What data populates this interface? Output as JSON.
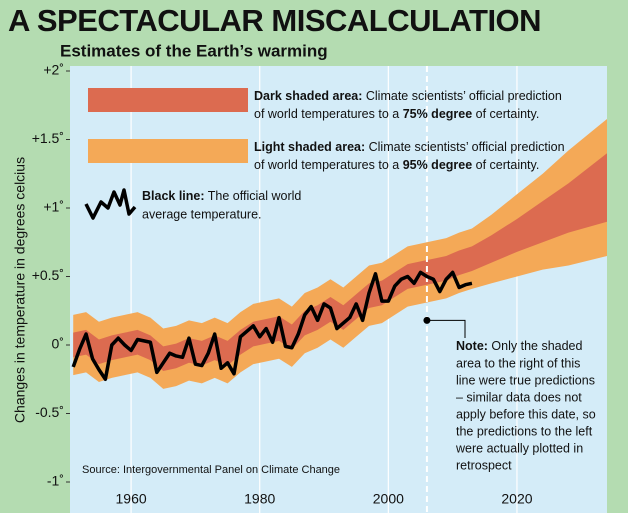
{
  "chart_data": {
    "type": "line",
    "title": "A SPECTACULAR MISCALCULATION",
    "subtitle": "Estimates of the Earth’s warming",
    "y_label": "Changes in temperature in degrees celcius",
    "source": "Source: Intergovernmental Panel on Climate Change",
    "xlim": [
      1950.5,
      2034
    ],
    "ylim": [
      -1,
      2
    ],
    "xticks": [
      1960,
      1980,
      2000,
      2020
    ],
    "yticks": [
      {
        "value": 2,
        "label": "+2˚"
      },
      {
        "value": 1.5,
        "label": "+1.5˚"
      },
      {
        "value": 1,
        "label": "+1˚"
      },
      {
        "value": 0.5,
        "label": "+0.5˚"
      },
      {
        "value": 0,
        "label": "0˚"
      },
      {
        "value": -0.5,
        "label": "-0.5˚"
      },
      {
        "value": -1,
        "label": "-1˚"
      }
    ],
    "grid": "x",
    "x": [
      1951,
      1952,
      1953,
      1954,
      1955,
      1956,
      1957,
      1958,
      1959,
      1960,
      1961,
      1962,
      1963,
      1964,
      1965,
      1966,
      1967,
      1968,
      1969,
      1970,
      1971,
      1972,
      1973,
      1974,
      1975,
      1976,
      1977,
      1978,
      1979,
      1980,
      1981,
      1982,
      1983,
      1984,
      1985,
      1986,
      1987,
      1988,
      1989,
      1990,
      1991,
      1992,
      1993,
      1994,
      1995,
      1996,
      1997,
      1998,
      1999,
      2000,
      2001,
      2002,
      2003,
      2004,
      2005,
      2006,
      2007,
      2008,
      2009,
      2010,
      2011,
      2012,
      2013
    ],
    "series": [
      {
        "name": "Black line:",
        "color": "#000000",
        "description": [
          "The official world",
          "average temperature."
        ],
        "values": [
          -0.16,
          -0.03,
          0.08,
          -0.1,
          -0.18,
          -0.25,
          0.0,
          0.05,
          0.0,
          -0.04,
          0.04,
          0.03,
          0.02,
          -0.2,
          -0.13,
          -0.06,
          -0.08,
          -0.09,
          0.05,
          -0.14,
          -0.15,
          -0.06,
          0.08,
          -0.17,
          -0.13,
          -0.21,
          0.06,
          0.1,
          0.14,
          0.06,
          0.12,
          0.02,
          0.2,
          -0.01,
          -0.02,
          0.08,
          0.22,
          0.28,
          0.18,
          0.3,
          0.27,
          0.12,
          0.16,
          0.2,
          0.3,
          0.18,
          0.38,
          0.52,
          0.32,
          0.32,
          0.43,
          0.48,
          0.5,
          0.45,
          0.53,
          0.5,
          0.48,
          0.39,
          0.48,
          0.53,
          0.42,
          0.44,
          0.45
        ]
      }
    ],
    "bands": {
      "x": [
        1951,
        1953,
        1955,
        1957,
        1959,
        1961,
        1963,
        1965,
        1967,
        1969,
        1971,
        1973,
        1975,
        1977,
        1979,
        1981,
        1983,
        1985,
        1987,
        1989,
        1991,
        1993,
        1995,
        1997,
        1999,
        2001,
        2003,
        2005,
        2007,
        2009,
        2011,
        2013,
        2016,
        2020,
        2024,
        2028,
        2034
      ],
      "series": [
        {
          "name": "Light shaded area:",
          "color": "#f4a957",
          "description": [
            "Climate scientists’ official prediction",
            "of world temperatures to a ",
            "95% degree",
            " of certainty."
          ],
          "lower": [
            -0.22,
            -0.2,
            -0.27,
            -0.24,
            -0.22,
            -0.2,
            -0.24,
            -0.32,
            -0.3,
            -0.26,
            -0.28,
            -0.24,
            -0.28,
            -0.2,
            -0.14,
            -0.12,
            -0.1,
            -0.16,
            -0.06,
            -0.02,
            0.04,
            -0.02,
            0.06,
            0.14,
            0.16,
            0.22,
            0.28,
            0.3,
            0.32,
            0.34,
            0.38,
            0.41,
            0.45,
            0.5,
            0.55,
            0.58,
            0.65
          ],
          "upper": [
            0.22,
            0.24,
            0.17,
            0.2,
            0.22,
            0.24,
            0.2,
            0.12,
            0.14,
            0.18,
            0.16,
            0.2,
            0.16,
            0.24,
            0.3,
            0.32,
            0.34,
            0.28,
            0.38,
            0.42,
            0.48,
            0.42,
            0.5,
            0.58,
            0.6,
            0.66,
            0.72,
            0.74,
            0.76,
            0.78,
            0.82,
            0.85,
            0.95,
            1.1,
            1.25,
            1.42,
            1.65
          ]
        },
        {
          "name": "Dark shaded area:",
          "color": "#dc6b50",
          "description": [
            "Climate scientists’ official prediction",
            "of world temperatures to a ",
            "75% degree",
            " of certainty."
          ],
          "lower": [
            -0.09,
            -0.07,
            -0.14,
            -0.11,
            -0.09,
            -0.07,
            -0.11,
            -0.19,
            -0.17,
            -0.13,
            -0.15,
            -0.11,
            -0.15,
            -0.07,
            -0.01,
            0.01,
            0.03,
            -0.03,
            0.07,
            0.11,
            0.17,
            0.11,
            0.19,
            0.27,
            0.29,
            0.35,
            0.41,
            0.43,
            0.45,
            0.47,
            0.51,
            0.54,
            0.6,
            0.68,
            0.75,
            0.82,
            0.9
          ],
          "upper": [
            0.09,
            0.11,
            0.04,
            0.07,
            0.09,
            0.11,
            0.07,
            -0.01,
            0.01,
            0.05,
            0.03,
            0.07,
            0.03,
            0.11,
            0.17,
            0.19,
            0.21,
            0.15,
            0.25,
            0.29,
            0.35,
            0.29,
            0.37,
            0.45,
            0.47,
            0.53,
            0.59,
            0.61,
            0.63,
            0.65,
            0.69,
            0.72,
            0.8,
            0.92,
            1.05,
            1.18,
            1.4
          ]
        }
      ]
    },
    "annotation": {
      "x": 2006,
      "y": 0.18,
      "text": [
        "Note:",
        " Only the shaded",
        "area to the right of this",
        "line were true predictions",
        "– similar data does not",
        "apply before this date, so",
        "the predictions to the left",
        "were actually plotted in",
        "retrospect"
      ]
    }
  }
}
